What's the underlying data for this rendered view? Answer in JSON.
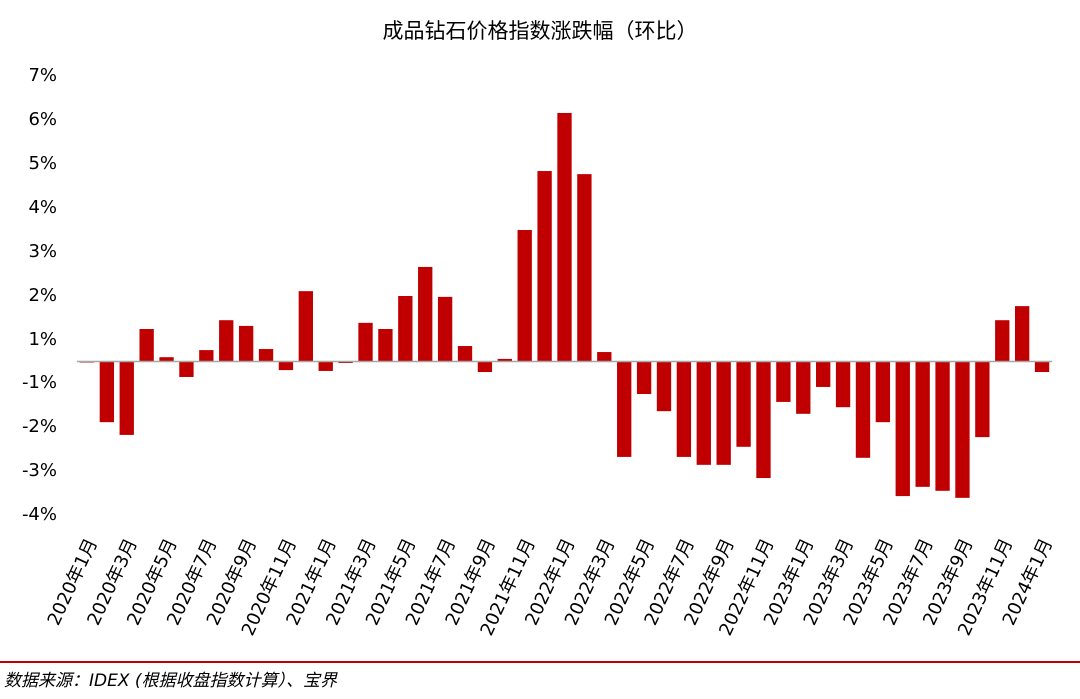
{
  "chart_data": {
    "type": "bar",
    "title": "成品钻石价格指数涨跌幅（环比）",
    "categories": [
      "2020年1月",
      null,
      "2020年3月",
      null,
      "2020年5月",
      null,
      "2020年7月",
      null,
      "2020年9月",
      null,
      "2020年11月",
      null,
      "2021年1月",
      null,
      "2021年3月",
      null,
      "2021年5月",
      null,
      "2021年7月",
      null,
      "2021年9月",
      null,
      "2021年11月",
      null,
      "2022年1月",
      null,
      "2022年3月",
      null,
      "2022年5月",
      null,
      "2022年7月",
      null,
      "2022年9月",
      null,
      "2022年11月",
      null,
      "2023年1月",
      null,
      "2023年3月",
      null,
      "2023年5月",
      null,
      "2023年7月",
      null,
      "2023年9月",
      null,
      "2023年11月",
      null,
      "2024年1月"
    ],
    "values": [
      -0.05,
      -1.89,
      -2.18,
      1.25,
      0.2,
      -0.72,
      0.53,
      1.45,
      1.32,
      0.58,
      -0.4,
      2.11,
      -0.44,
      -0.07,
      1.39,
      1.25,
      2.0,
      2.66,
      1.98,
      0.72,
      -0.49,
      0.12,
      3.5,
      4.84,
      6.16,
      4.77,
      0.44,
      -2.68,
      -1.25,
      -1.64,
      -2.68,
      -2.86,
      -2.86,
      -2.45,
      -3.16,
      -1.43,
      -1.7,
      -1.09,
      -1.55,
      -2.7,
      -1.89,
      -3.57,
      -3.36,
      -3.45,
      -3.61,
      -2.23,
      1.45,
      1.77,
      -0.49
    ],
    "color": "#c00000",
    "ylim": [
      -4,
      7
    ],
    "yticks": [
      {
        "value": 7,
        "label": "7%"
      },
      {
        "value": 6,
        "label": "6%"
      },
      {
        "value": 5,
        "label": "5%"
      },
      {
        "value": 4,
        "label": "4%"
      },
      {
        "value": 3,
        "label": "3%"
      },
      {
        "value": 2,
        "label": "2%"
      },
      {
        "value": 1,
        "label": "1%"
      },
      {
        "value": -1,
        "label": "-1%"
      },
      {
        "value": -2,
        "label": "-2%"
      },
      {
        "value": -3,
        "label": "-3%"
      },
      {
        "value": -4,
        "label": "-4%"
      }
    ],
    "source": "数据来源：IDEX (根据收盘指数计算）、宝界"
  }
}
